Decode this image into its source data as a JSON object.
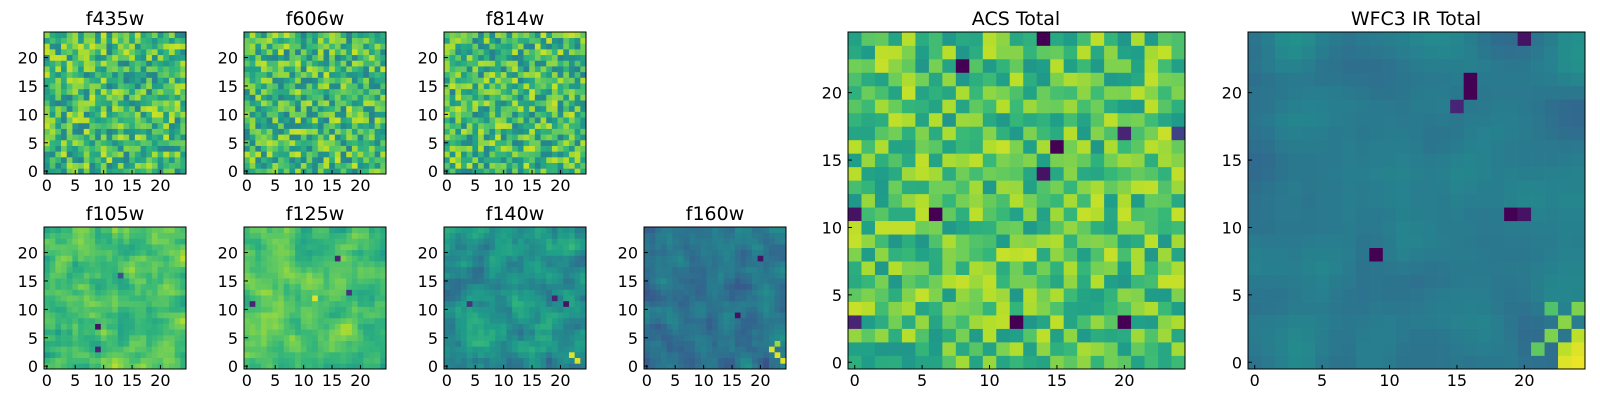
{
  "chart_data": [
    {
      "type": "heatmap",
      "title": "f435w",
      "xticks": [
        0,
        5,
        10,
        15,
        20
      ],
      "yticks": [
        0,
        5,
        10,
        15,
        20
      ],
      "xlim": [
        0,
        25
      ],
      "ylim": [
        0,
        25
      ],
      "grid": false,
      "colormap": "viridis",
      "value_range": [
        0,
        1
      ],
      "mean": 0.68,
      "spread": 0.22,
      "smooth": 0,
      "seed": 11,
      "features": []
    },
    {
      "type": "heatmap",
      "title": "f606w",
      "xticks": [
        0,
        5,
        10,
        15,
        20
      ],
      "yticks": [
        0,
        5,
        10,
        15,
        20
      ],
      "xlim": [
        0,
        25
      ],
      "ylim": [
        0,
        25
      ],
      "grid": false,
      "colormap": "viridis",
      "value_range": [
        0,
        1
      ],
      "mean": 0.68,
      "spread": 0.22,
      "smooth": 0,
      "seed": 23,
      "features": []
    },
    {
      "type": "heatmap",
      "title": "f814w",
      "xticks": [
        0,
        5,
        10,
        15,
        20
      ],
      "yticks": [
        0,
        5,
        10,
        15,
        20
      ],
      "xlim": [
        0,
        25
      ],
      "ylim": [
        0,
        25
      ],
      "grid": false,
      "colormap": "viridis",
      "value_range": [
        0,
        1
      ],
      "mean": 0.68,
      "spread": 0.22,
      "smooth": 0,
      "seed": 37,
      "features": []
    },
    {
      "type": "heatmap",
      "title": "f105w",
      "xticks": [
        0,
        5,
        10,
        15,
        20
      ],
      "yticks": [
        0,
        5,
        10,
        15,
        20
      ],
      "xlim": [
        0,
        25
      ],
      "ylim": [
        0,
        25
      ],
      "grid": false,
      "colormap": "viridis",
      "value_range": [
        0,
        1
      ],
      "mean": 0.72,
      "spread": 0.16,
      "smooth": 1,
      "seed": 41,
      "features": [
        {
          "x": 9,
          "y": 7,
          "v": 0.05
        },
        {
          "x": 9,
          "y": 3,
          "v": 0.1
        },
        {
          "x": 13,
          "y": 16,
          "v": 0.25
        }
      ]
    },
    {
      "type": "heatmap",
      "title": "f125w",
      "xticks": [
        0,
        5,
        10,
        15,
        20
      ],
      "yticks": [
        0,
        5,
        10,
        15,
        20
      ],
      "xlim": [
        0,
        25
      ],
      "ylim": [
        0,
        25
      ],
      "grid": false,
      "colormap": "viridis",
      "value_range": [
        0,
        1
      ],
      "mean": 0.7,
      "spread": 0.15,
      "smooth": 1,
      "seed": 53,
      "features": [
        {
          "x": 1,
          "y": 11,
          "v": 0.1
        },
        {
          "x": 16,
          "y": 19,
          "v": 0.1
        },
        {
          "x": 18,
          "y": 13,
          "v": 0.15
        },
        {
          "x": 12,
          "y": 12,
          "v": 0.95
        }
      ]
    },
    {
      "type": "heatmap",
      "title": "f140w",
      "xticks": [
        0,
        5,
        10,
        15,
        20
      ],
      "yticks": [
        0,
        5,
        10,
        15,
        20
      ],
      "xlim": [
        0,
        25
      ],
      "ylim": [
        0,
        25
      ],
      "grid": false,
      "colormap": "viridis",
      "value_range": [
        0,
        1
      ],
      "mean": 0.5,
      "spread": 0.16,
      "smooth": 1,
      "seed": 67,
      "features": [
        {
          "x": 19,
          "y": 12,
          "v": 0.1
        },
        {
          "x": 21,
          "y": 11,
          "v": 0.05
        },
        {
          "x": 4,
          "y": 11,
          "v": 0.15
        },
        {
          "x": 22,
          "y": 2,
          "v": 0.95
        },
        {
          "x": 23,
          "y": 1,
          "v": 0.95
        }
      ]
    },
    {
      "type": "heatmap",
      "title": "f160w",
      "xticks": [
        0,
        5,
        10,
        15,
        20
      ],
      "yticks": [
        0,
        5,
        10,
        15,
        20
      ],
      "xlim": [
        0,
        25
      ],
      "ylim": [
        0,
        25
      ],
      "grid": false,
      "colormap": "viridis",
      "value_range": [
        0,
        1
      ],
      "mean": 0.38,
      "spread": 0.12,
      "smooth": 1,
      "seed": 79,
      "features": [
        {
          "x": 16,
          "y": 9,
          "v": 0.05
        },
        {
          "x": 20,
          "y": 19,
          "v": 0.05
        },
        {
          "x": 22,
          "y": 3,
          "v": 0.95
        },
        {
          "x": 23,
          "y": 2,
          "v": 0.95
        },
        {
          "x": 24,
          "y": 1,
          "v": 0.95
        },
        {
          "x": 23,
          "y": 4,
          "v": 0.85
        }
      ]
    },
    {
      "type": "heatmap",
      "title": "ACS Total",
      "xticks": [
        0,
        5,
        10,
        15,
        20
      ],
      "yticks": [
        0,
        5,
        10,
        15,
        20
      ],
      "xlim": [
        0,
        25
      ],
      "ylim": [
        0,
        25
      ],
      "grid": false,
      "colormap": "viridis",
      "value_range": [
        0,
        1
      ],
      "mean": 0.72,
      "spread": 0.18,
      "smooth": 0,
      "seed": 97,
      "features": [
        {
          "x": 14,
          "y": 24,
          "v": 0.0
        },
        {
          "x": 8,
          "y": 22,
          "v": 0.0
        },
        {
          "x": 15,
          "y": 16,
          "v": 0.0
        },
        {
          "x": 14,
          "y": 14,
          "v": 0.05
        },
        {
          "x": 6,
          "y": 11,
          "v": 0.0
        },
        {
          "x": 0,
          "y": 11,
          "v": 0.05
        },
        {
          "x": 12,
          "y": 3,
          "v": 0.0
        },
        {
          "x": 20,
          "y": 3,
          "v": 0.0
        },
        {
          "x": 20,
          "y": 17,
          "v": 0.1
        },
        {
          "x": 24,
          "y": 17,
          "v": 0.2
        },
        {
          "x": 0,
          "y": 3,
          "v": 0.1
        }
      ]
    },
    {
      "type": "heatmap",
      "title": "WFC3 IR Total",
      "xticks": [
        0,
        5,
        10,
        15,
        20
      ],
      "yticks": [
        0,
        5,
        10,
        15,
        20
      ],
      "xlim": [
        0,
        25
      ],
      "ylim": [
        0,
        25
      ],
      "grid": false,
      "colormap": "viridis",
      "value_range": [
        0,
        1
      ],
      "mean": 0.42,
      "spread": 0.08,
      "smooth": 2,
      "seed": 113,
      "features": [
        {
          "x": 16,
          "y": 20,
          "v": 0.0
        },
        {
          "x": 16,
          "y": 21,
          "v": 0.0
        },
        {
          "x": 15,
          "y": 19,
          "v": 0.1
        },
        {
          "x": 19,
          "y": 11,
          "v": 0.0
        },
        {
          "x": 20,
          "y": 11,
          "v": 0.05
        },
        {
          "x": 9,
          "y": 8,
          "v": 0.0
        },
        {
          "x": 20,
          "y": 24,
          "v": 0.05
        },
        {
          "x": 23,
          "y": 0,
          "v": 0.95
        },
        {
          "x": 24,
          "y": 0,
          "v": 0.97
        },
        {
          "x": 24,
          "y": 1,
          "v": 0.95
        },
        {
          "x": 23,
          "y": 1,
          "v": 0.9
        },
        {
          "x": 24,
          "y": 2,
          "v": 0.9
        },
        {
          "x": 22,
          "y": 2,
          "v": 0.8
        },
        {
          "x": 23,
          "y": 3,
          "v": 0.82
        },
        {
          "x": 24,
          "y": 4,
          "v": 0.8
        },
        {
          "x": 22,
          "y": 4,
          "v": 0.72
        },
        {
          "x": 21,
          "y": 1,
          "v": 0.75
        }
      ]
    }
  ]
}
